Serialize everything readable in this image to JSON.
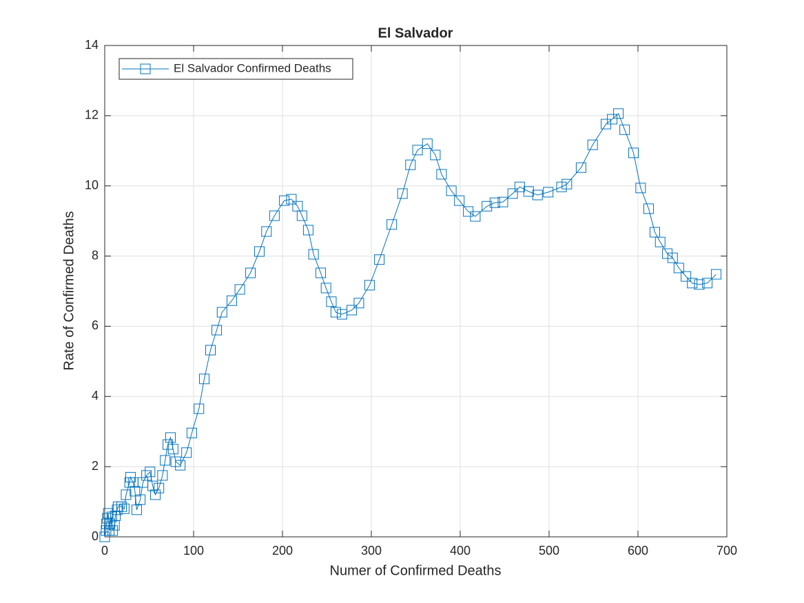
{
  "chart_data": {
    "type": "line",
    "title": "El Salvador",
    "x_label": "Numer of Confirmed Deaths",
    "y_label": "Rate of Confirmed Deaths",
    "x": [
      0,
      1.5,
      2,
      3,
      4,
      5,
      6,
      8,
      9,
      11,
      12,
      14,
      15,
      19,
      22,
      24,
      28,
      29,
      32,
      34,
      36,
      40,
      43,
      47,
      51,
      54,
      57,
      61,
      65,
      68,
      71,
      74,
      77,
      80,
      85,
      92,
      98,
      106,
      112,
      119,
      126,
      132,
      143,
      152,
      164,
      174,
      182,
      191,
      202,
      210,
      217,
      222,
      229,
      235,
      243,
      249,
      255,
      260,
      267,
      278,
      286,
      298,
      309,
      323,
      335,
      344,
      352,
      363,
      372,
      379,
      390,
      399,
      409,
      417,
      430,
      439,
      448,
      459,
      467,
      477,
      487,
      499,
      514,
      520,
      536,
      549,
      564,
      571,
      578,
      585,
      595,
      603,
      612,
      619,
      625,
      633,
      639,
      646,
      654,
      661,
      669,
      678,
      688
    ],
    "series": [
      {
        "name": "El Salvador Confirmed Deaths",
        "color": "#0072bd",
        "marker": "square",
        "values": [
          0,
          0.18,
          0.37,
          0.53,
          0.67,
          0.18,
          0.37,
          0.57,
          0.18,
          0.33,
          0.6,
          0.77,
          0.86,
          0.86,
          0.8,
          1.2,
          1.55,
          1.7,
          1.55,
          1.3,
          0.77,
          1.06,
          1.55,
          1.75,
          1.85,
          1.45,
          1.2,
          1.39,
          1.75,
          2.18,
          2.63,
          2.83,
          2.5,
          2.14,
          2.04,
          2.4,
          2.96,
          3.65,
          4.5,
          5.32,
          5.89,
          6.4,
          6.73,
          7.05,
          7.52,
          8.13,
          8.7,
          9.15,
          9.58,
          9.62,
          9.42,
          9.15,
          8.74,
          8.05,
          7.52,
          7.09,
          6.7,
          6.4,
          6.34,
          6.46,
          6.66,
          7.17,
          7.9,
          8.9,
          9.78,
          10.6,
          11.02,
          11.2,
          10.88,
          10.33,
          9.86,
          9.58,
          9.27,
          9.13,
          9.42,
          9.52,
          9.54,
          9.78,
          9.97,
          9.84,
          9.74,
          9.82,
          9.97,
          10.05,
          10.52,
          11.17,
          11.76,
          11.9,
          12.06,
          11.6,
          10.94,
          9.94,
          9.35,
          8.68,
          8.4,
          8.07,
          7.95,
          7.66,
          7.42,
          7.23,
          7.19,
          7.23,
          7.48
        ]
      }
    ],
    "xlim": [
      0,
      700
    ],
    "xticks": [
      0,
      100,
      200,
      300,
      400,
      500,
      600,
      700
    ],
    "ylim": [
      0,
      14
    ],
    "yticks": [
      0,
      2,
      4,
      6,
      8,
      10,
      12,
      14
    ],
    "grid": true,
    "legend": "top-left"
  }
}
